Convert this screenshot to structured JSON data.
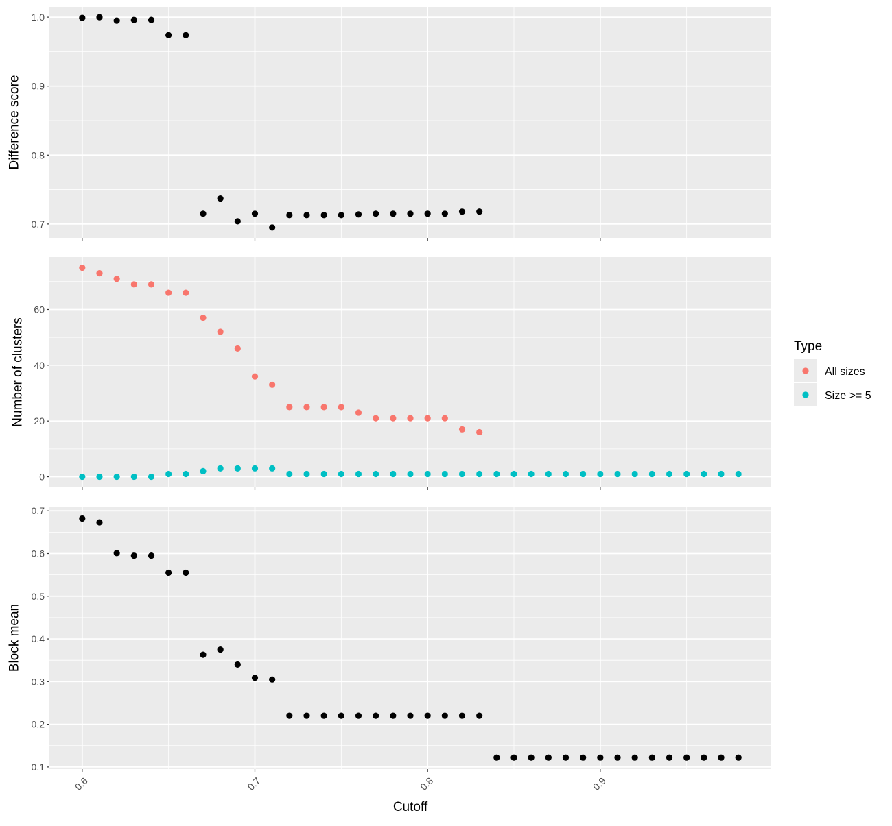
{
  "chart_data": [
    {
      "type": "scatter",
      "ylabel": "Difference score",
      "xlim": [
        0.581,
        0.999
      ],
      "ylim": [
        0.68,
        1.015
      ],
      "xticks": [
        0.6,
        0.7,
        0.8,
        0.9
      ],
      "yticks": [
        0.7,
        0.8,
        0.9,
        1.0
      ],
      "ytick_labels": [
        "0.7",
        "0.8",
        "0.9",
        "1.0"
      ],
      "grid": true,
      "series": [
        {
          "color": "#000000",
          "x": [
            0.6,
            0.61,
            0.62,
            0.63,
            0.64,
            0.65,
            0.66,
            0.67,
            0.68,
            0.69,
            0.7,
            0.71,
            0.72,
            0.73,
            0.74,
            0.75,
            0.76,
            0.77,
            0.78,
            0.79,
            0.8,
            0.81,
            0.82,
            0.83
          ],
          "y": [
            0.999,
            1.0,
            0.995,
            0.996,
            0.996,
            0.974,
            0.974,
            0.715,
            0.737,
            0.704,
            0.715,
            0.695,
            0.713,
            0.713,
            0.713,
            0.713,
            0.714,
            0.715,
            0.715,
            0.715,
            0.715,
            0.715,
            0.718,
            0.718
          ]
        }
      ]
    },
    {
      "type": "scatter",
      "ylabel": "Number of clusters",
      "xlim": [
        0.581,
        0.999
      ],
      "ylim": [
        -3.8,
        78.8
      ],
      "xticks": [
        0.6,
        0.7,
        0.8,
        0.9
      ],
      "yticks": [
        0,
        20,
        40,
        60
      ],
      "ytick_labels": [
        "0",
        "20",
        "40",
        "60"
      ],
      "grid": true,
      "legend": {
        "title": "Type",
        "placement": "right"
      },
      "series": [
        {
          "name": "All sizes",
          "color": "#F8766D",
          "x": [
            0.6,
            0.61,
            0.62,
            0.63,
            0.64,
            0.65,
            0.66,
            0.67,
            0.68,
            0.69,
            0.7,
            0.71,
            0.72,
            0.73,
            0.74,
            0.75,
            0.76,
            0.77,
            0.78,
            0.79,
            0.8,
            0.81,
            0.82,
            0.83
          ],
          "y": [
            75,
            73,
            71,
            69,
            69,
            66,
            66,
            57,
            52,
            46,
            36,
            33,
            25,
            25,
            25,
            25,
            23,
            21,
            21,
            21,
            21,
            21,
            17,
            16
          ]
        },
        {
          "name": "Size >= 5",
          "color": "#00BFC4",
          "x": [
            0.6,
            0.61,
            0.62,
            0.63,
            0.64,
            0.65,
            0.66,
            0.67,
            0.68,
            0.69,
            0.7,
            0.71,
            0.72,
            0.73,
            0.74,
            0.75,
            0.76,
            0.77,
            0.78,
            0.79,
            0.8,
            0.81,
            0.82,
            0.83,
            0.84,
            0.85,
            0.86,
            0.87,
            0.88,
            0.89,
            0.9,
            0.91,
            0.92,
            0.93,
            0.94,
            0.95,
            0.96,
            0.97,
            0.98
          ],
          "y": [
            0,
            0,
            0,
            0,
            0,
            1,
            1,
            2,
            3,
            3,
            3,
            3,
            1,
            1,
            1,
            1,
            1,
            1,
            1,
            1,
            1,
            1,
            1,
            1,
            1,
            1,
            1,
            1,
            1,
            1,
            1,
            1,
            1,
            1,
            1,
            1,
            1,
            1,
            1
          ]
        }
      ]
    },
    {
      "type": "scatter",
      "ylabel": "Block mean",
      "xlabel": "Cutoff",
      "xlim": [
        0.581,
        0.999
      ],
      "ylim": [
        0.095,
        0.71
      ],
      "xticks": [
        0.6,
        0.7,
        0.8,
        0.9
      ],
      "xtick_labels": [
        "0.6",
        "0.7",
        "0.8",
        "0.9"
      ],
      "yticks": [
        0.1,
        0.2,
        0.3,
        0.4,
        0.5,
        0.6,
        0.7
      ],
      "ytick_labels": [
        "0.1",
        "0.2",
        "0.3",
        "0.4",
        "0.5",
        "0.6",
        "0.7"
      ],
      "grid": true,
      "series": [
        {
          "color": "#000000",
          "x": [
            0.6,
            0.61,
            0.62,
            0.63,
            0.64,
            0.65,
            0.66,
            0.67,
            0.68,
            0.69,
            0.7,
            0.71,
            0.72,
            0.73,
            0.74,
            0.75,
            0.76,
            0.77,
            0.78,
            0.79,
            0.8,
            0.81,
            0.82,
            0.83,
            0.84,
            0.85,
            0.86,
            0.87,
            0.88,
            0.89,
            0.9,
            0.91,
            0.92,
            0.93,
            0.94,
            0.95,
            0.96,
            0.97,
            0.98
          ],
          "y": [
            0.682,
            0.673,
            0.601,
            0.595,
            0.595,
            0.555,
            0.555,
            0.363,
            0.375,
            0.34,
            0.309,
            0.305,
            0.22,
            0.22,
            0.22,
            0.22,
            0.22,
            0.22,
            0.22,
            0.22,
            0.22,
            0.22,
            0.22,
            0.22,
            0.122,
            0.122,
            0.122,
            0.122,
            0.122,
            0.122,
            0.122,
            0.122,
            0.122,
            0.122,
            0.122,
            0.122,
            0.122,
            0.122,
            0.122
          ]
        }
      ]
    }
  ]
}
